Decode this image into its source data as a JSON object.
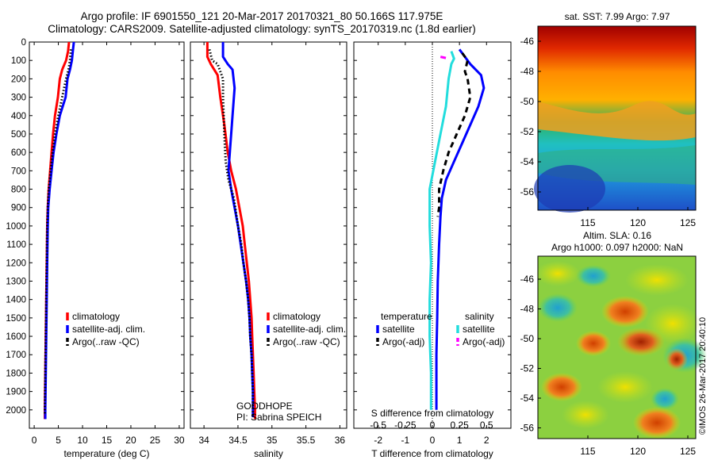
{
  "header": {
    "line1": "Argo profile: IF 6901550_121 20-Mar-2017 20170321_80 50.166S 117.975E",
    "line2": "Climatology: CARS2009. Satellite-adjusted climatology: synTS_20170319.nc (1.8d earlier)"
  },
  "stamp": "©IMOS 26-Mar-2017 20:40:10",
  "colors": {
    "climatology": "#ff0000",
    "satellite": "#0000ff",
    "argo": "#000000",
    "sal_satellite": "#22dddd",
    "sal_argo": "#ff00ff"
  },
  "chart_data": [
    {
      "id": "temperature",
      "type": "line",
      "xlabel": "temperature (deg C)",
      "ylabel": "",
      "xlim": [
        -1,
        31
      ],
      "ylim": [
        2100,
        0
      ],
      "xticks": [
        "0",
        "5",
        "10",
        "15",
        "20",
        "25",
        "30"
      ],
      "yticks": [
        "0",
        "100",
        "200",
        "300",
        "400",
        "500",
        "600",
        "700",
        "800",
        "900",
        "1000",
        "1100",
        "1200",
        "1300",
        "1400",
        "1500",
        "1600",
        "1700",
        "1800",
        "1900",
        "2000"
      ],
      "legend": [
        "climatology",
        "satellite-adj. clim.",
        "Argo(..raw -QC)"
      ],
      "legend_position": "lower-right",
      "series": [
        {
          "name": "climatology",
          "style": "solid",
          "color": "#ff0000",
          "points": [
            [
              7.2,
              0
            ],
            [
              7.0,
              50
            ],
            [
              6.6,
              100
            ],
            [
              5.8,
              150
            ],
            [
              5.3,
              200
            ],
            [
              4.9,
              300
            ],
            [
              4.3,
              400
            ],
            [
              3.9,
              500
            ],
            [
              3.6,
              600
            ],
            [
              3.3,
              700
            ],
            [
              3.0,
              800
            ],
            [
              2.8,
              900
            ],
            [
              2.7,
              1000
            ],
            [
              2.6,
              1200
            ],
            [
              2.5,
              1400
            ],
            [
              2.4,
              1600
            ],
            [
              2.3,
              1800
            ],
            [
              2.2,
              2000
            ],
            [
              2.2,
              2050
            ]
          ]
        },
        {
          "name": "satellite-adj. clim.",
          "style": "solid",
          "color": "#0000ff",
          "points": [
            [
              8.2,
              0
            ],
            [
              8.0,
              50
            ],
            [
              7.8,
              100
            ],
            [
              7.4,
              150
            ],
            [
              6.9,
              200
            ],
            [
              6.5,
              300
            ],
            [
              5.3,
              400
            ],
            [
              4.6,
              500
            ],
            [
              4.0,
              600
            ],
            [
              3.6,
              700
            ],
            [
              3.2,
              800
            ],
            [
              2.9,
              900
            ],
            [
              2.8,
              1000
            ],
            [
              2.7,
              1200
            ],
            [
              2.6,
              1400
            ],
            [
              2.5,
              1600
            ],
            [
              2.4,
              1800
            ],
            [
              2.3,
              2000
            ],
            [
              2.3,
              2050
            ]
          ]
        },
        {
          "name": "Argo(..raw -QC)",
          "style": "dotted",
          "color": "#000000",
          "points": [
            [
              7.6,
              40
            ],
            [
              7.4,
              100
            ],
            [
              7.1,
              150
            ],
            [
              6.6,
              200
            ],
            [
              5.8,
              300
            ],
            [
              5.0,
              400
            ],
            [
              4.3,
              500
            ],
            [
              3.8,
              600
            ],
            [
              3.4,
              700
            ],
            [
              3.0,
              800
            ],
            [
              2.8,
              900
            ],
            [
              2.7,
              1000
            ],
            [
              2.6,
              1200
            ],
            [
              2.5,
              1400
            ],
            [
              2.4,
              1600
            ],
            [
              2.3,
              1800
            ],
            [
              2.2,
              2000
            ],
            [
              2.2,
              2030
            ]
          ]
        }
      ]
    },
    {
      "id": "salinity",
      "type": "line",
      "xlabel": "salinity",
      "ylabel": "",
      "xlim": [
        33.8,
        36.1
      ],
      "ylim": [
        2100,
        0
      ],
      "xticks": [
        "34",
        "34.5",
        "35",
        "35.5",
        "36"
      ],
      "legend": [
        "climatology",
        "satellite-adj. clim.",
        "Argo(..raw -QC)"
      ],
      "legend_position": "lower-right",
      "annotation": [
        "GOODHOPE",
        "PI: Sabrina SPEICH"
      ],
      "series": [
        {
          "name": "climatology",
          "style": "solid",
          "color": "#ff0000",
          "points": [
            [
              34.05,
              0
            ],
            [
              34.05,
              80
            ],
            [
              34.1,
              120
            ],
            [
              34.2,
              180
            ],
            [
              34.24,
              300
            ],
            [
              34.3,
              450
            ],
            [
              34.35,
              600
            ],
            [
              34.4,
              700
            ],
            [
              34.47,
              800
            ],
            [
              34.52,
              900
            ],
            [
              34.57,
              1000
            ],
            [
              34.6,
              1100
            ],
            [
              34.63,
              1200
            ],
            [
              34.66,
              1300
            ],
            [
              34.68,
              1400
            ],
            [
              34.7,
              1500
            ],
            [
              34.71,
              1600
            ],
            [
              34.72,
              1700
            ],
            [
              34.73,
              1800
            ],
            [
              34.74,
              1900
            ],
            [
              34.75,
              2000
            ],
            [
              34.75,
              2050
            ]
          ]
        },
        {
          "name": "satellite-adj. clim.",
          "style": "solid",
          "color": "#0000ff",
          "points": [
            [
              34.28,
              0
            ],
            [
              34.28,
              80
            ],
            [
              34.35,
              120
            ],
            [
              34.42,
              150
            ],
            [
              34.45,
              250
            ],
            [
              34.42,
              400
            ],
            [
              34.38,
              600
            ],
            [
              34.36,
              700
            ],
            [
              34.4,
              800
            ],
            [
              34.45,
              900
            ],
            [
              34.5,
              1000
            ],
            [
              34.54,
              1100
            ],
            [
              34.58,
              1200
            ],
            [
              34.62,
              1300
            ],
            [
              34.65,
              1400
            ],
            [
              34.67,
              1500
            ],
            [
              34.68,
              1600
            ],
            [
              34.7,
              1700
            ],
            [
              34.71,
              1800
            ],
            [
              34.72,
              1900
            ],
            [
              34.72,
              2000
            ],
            [
              34.72,
              2040
            ]
          ]
        },
        {
          "name": "Argo(..raw -QC)",
          "style": "dotted",
          "color": "#000000",
          "points": [
            [
              34.08,
              40
            ],
            [
              34.12,
              100
            ],
            [
              34.2,
              120
            ],
            [
              34.28,
              200
            ],
            [
              34.28,
              300
            ],
            [
              34.3,
              500
            ],
            [
              34.32,
              650
            ],
            [
              34.36,
              750
            ],
            [
              34.44,
              850
            ],
            [
              34.5,
              1000
            ],
            [
              34.55,
              1100
            ],
            [
              34.58,
              1200
            ],
            [
              34.62,
              1300
            ],
            [
              34.65,
              1400
            ],
            [
              34.67,
              1500
            ],
            [
              34.68,
              1600
            ],
            [
              34.7,
              1700
            ],
            [
              34.71,
              1800
            ],
            [
              34.72,
              1900
            ],
            [
              34.72,
              2000
            ],
            [
              34.72,
              2030
            ]
          ]
        }
      ]
    },
    {
      "id": "difference",
      "type": "line",
      "xlabel": "T difference from climatology",
      "top_label": "S difference from climatology",
      "xlim": [
        -2.9,
        2.9
      ],
      "ylim": [
        2100,
        0
      ],
      "xticks": [
        "-2",
        "-1",
        "0",
        "1",
        "2"
      ],
      "s_ticks": [
        "-0.5",
        "-0.25",
        "0",
        "0.25",
        "0.5"
      ],
      "legend_temperature": [
        "temperature",
        "satellite",
        "Argo(-adj)"
      ],
      "legend_salinity": [
        "salinity",
        "satellite",
        "Argo(-adj)"
      ],
      "series": [
        {
          "name": "temperature satellite",
          "style": "solid",
          "color": "#0000ff",
          "points": [
            [
              1.0,
              40
            ],
            [
              1.2,
              80
            ],
            [
              1.4,
              120
            ],
            [
              1.8,
              180
            ],
            [
              1.9,
              250
            ],
            [
              1.7,
              350
            ],
            [
              1.4,
              450
            ],
            [
              1.1,
              550
            ],
            [
              0.8,
              650
            ],
            [
              0.5,
              750
            ],
            [
              0.35,
              850
            ],
            [
              0.3,
              950
            ],
            [
              0.25,
              1100
            ],
            [
              0.2,
              1300
            ],
            [
              0.18,
              1500
            ],
            [
              0.15,
              1700
            ],
            [
              0.15,
              1900
            ],
            [
              0.15,
              2000
            ]
          ]
        },
        {
          "name": "temperature Argo(-adj)",
          "style": "dashed",
          "color": "#000000",
          "points": [
            [
              1.1,
              60
            ],
            [
              1.3,
              100
            ],
            [
              1.2,
              160
            ],
            [
              1.3,
              200
            ],
            [
              1.4,
              300
            ],
            [
              1.2,
              400
            ],
            [
              0.9,
              500
            ],
            [
              0.6,
              600
            ],
            [
              0.4,
              700
            ],
            [
              0.25,
              800
            ],
            [
              0.25,
              900
            ],
            [
              0.2,
              950
            ]
          ]
        },
        {
          "name": "salinity satellite",
          "style": "solid",
          "color": "#22dddd",
          "points": [
            [
              0.7,
              50
            ],
            [
              0.8,
              90
            ],
            [
              0.7,
              120
            ],
            [
              0.6,
              200
            ],
            [
              0.5,
              350
            ],
            [
              0.3,
              500
            ],
            [
              0.1,
              650
            ],
            [
              -0.1,
              800
            ],
            [
              -0.1,
              1000
            ],
            [
              -0.05,
              1200
            ],
            [
              -0.1,
              1400
            ],
            [
              -0.1,
              1600
            ],
            [
              -0.05,
              1800
            ],
            [
              -0.05,
              2000
            ]
          ]
        },
        {
          "name": "salinity Argo(-adj)",
          "style": "dashed",
          "color": "#ff00ff",
          "points": [
            [
              0.3,
              80
            ],
            [
              0.6,
              90
            ]
          ]
        }
      ]
    }
  ],
  "maps": [
    {
      "id": "sst-map",
      "title": "sat. SST: 7.99 Argo: 7.97",
      "yticks": [
        "-46",
        "-48",
        "-50",
        "-52",
        "-54",
        "-56"
      ],
      "xticks": [
        "115",
        "120",
        "125"
      ]
    },
    {
      "id": "sla-map",
      "title1": "Altim. SLA: 0.16",
      "title2": "Argo h1000: 0.097 h2000: NaN",
      "yticks": [
        "-46",
        "-48",
        "-50",
        "-52",
        "-54",
        "-56"
      ],
      "xticks": [
        "115",
        "120",
        "125"
      ]
    }
  ]
}
